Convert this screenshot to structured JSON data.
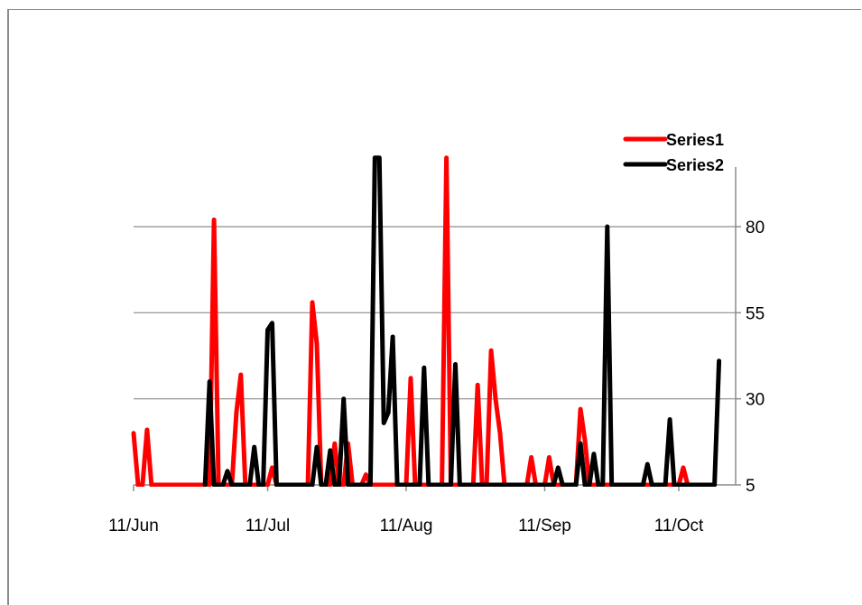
{
  "chart_data": {
    "type": "line",
    "title": "",
    "xlabel": "",
    "ylabel": "",
    "x_ticks": [
      "11/Jun",
      "11/Jul",
      "11/Aug",
      "11/Sep",
      "11/Oct"
    ],
    "y_ticks": [
      5,
      30,
      55,
      80
    ],
    "ylim": [
      5,
      100
    ],
    "y_axis_side": "right",
    "grid": "horizontal",
    "legend_position": "top-right",
    "series": [
      {
        "name": "Series1",
        "color": "#ff0000",
        "points": [
          [
            "2013-06-11",
            20
          ],
          [
            "2013-06-12",
            5
          ],
          [
            "2013-06-13",
            5
          ],
          [
            "2013-06-14",
            21
          ],
          [
            "2013-06-15",
            5
          ],
          [
            "2013-06-28",
            5
          ],
          [
            "2013-06-29",
            82
          ],
          [
            "2013-06-30",
            5
          ],
          [
            "2013-07-03",
            5
          ],
          [
            "2013-07-04",
            26
          ],
          [
            "2013-07-05",
            37
          ],
          [
            "2013-07-06",
            5
          ],
          [
            "2013-07-11",
            5
          ],
          [
            "2013-07-12",
            10
          ],
          [
            "2013-07-13",
            5
          ],
          [
            "2013-07-20",
            5
          ],
          [
            "2013-07-21",
            58
          ],
          [
            "2013-07-22",
            46
          ],
          [
            "2013-07-23",
            5
          ],
          [
            "2013-07-25",
            5
          ],
          [
            "2013-07-26",
            17
          ],
          [
            "2013-07-27",
            5
          ],
          [
            "2013-07-28",
            5
          ],
          [
            "2013-07-29",
            17
          ],
          [
            "2013-07-30",
            5
          ],
          [
            "2013-07-31",
            5
          ],
          [
            "2013-08-01",
            5
          ],
          [
            "2013-08-02",
            8
          ],
          [
            "2013-08-03",
            5
          ],
          [
            "2013-08-11",
            5
          ],
          [
            "2013-08-12",
            36
          ],
          [
            "2013-08-13",
            5
          ],
          [
            "2013-08-19",
            5
          ],
          [
            "2013-08-20",
            100
          ],
          [
            "2013-08-21",
            5
          ],
          [
            "2013-08-26",
            5
          ],
          [
            "2013-08-27",
            34
          ],
          [
            "2013-08-28",
            5
          ],
          [
            "2013-08-29",
            5
          ],
          [
            "2013-08-30",
            44
          ],
          [
            "2013-08-31",
            30
          ],
          [
            "2013-09-01",
            20
          ],
          [
            "2013-09-02",
            5
          ],
          [
            "2013-09-07",
            5
          ],
          [
            "2013-09-08",
            13
          ],
          [
            "2013-09-09",
            5
          ],
          [
            "2013-09-11",
            5
          ],
          [
            "2013-09-12",
            13
          ],
          [
            "2013-09-13",
            5
          ],
          [
            "2013-09-18",
            5
          ],
          [
            "2013-09-19",
            27
          ],
          [
            "2013-09-20",
            18
          ],
          [
            "2013-09-21",
            5
          ],
          [
            "2013-10-11",
            5
          ],
          [
            "2013-10-12",
            10
          ],
          [
            "2013-10-13",
            5
          ]
        ]
      },
      {
        "name": "Series2",
        "color": "#000000",
        "points": [
          [
            "2013-06-27",
            5
          ],
          [
            "2013-06-28",
            35
          ],
          [
            "2013-06-29",
            5
          ],
          [
            "2013-07-01",
            5
          ],
          [
            "2013-07-02",
            9
          ],
          [
            "2013-07-03",
            5
          ],
          [
            "2013-07-06",
            5
          ],
          [
            "2013-07-07",
            5
          ],
          [
            "2013-07-08",
            16
          ],
          [
            "2013-07-09",
            5
          ],
          [
            "2013-07-10",
            5
          ],
          [
            "2013-07-11",
            50
          ],
          [
            "2013-07-12",
            52
          ],
          [
            "2013-07-13",
            5
          ],
          [
            "2013-07-21",
            5
          ],
          [
            "2013-07-22",
            16
          ],
          [
            "2013-07-23",
            5
          ],
          [
            "2013-07-24",
            5
          ],
          [
            "2013-07-25",
            15
          ],
          [
            "2013-07-26",
            5
          ],
          [
            "2013-07-27",
            5
          ],
          [
            "2013-07-28",
            30
          ],
          [
            "2013-07-29",
            5
          ],
          [
            "2013-08-03",
            5
          ],
          [
            "2013-08-04",
            100
          ],
          [
            "2013-08-05",
            100
          ],
          [
            "2013-08-06",
            23
          ],
          [
            "2013-08-07",
            26
          ],
          [
            "2013-08-08",
            48
          ],
          [
            "2013-08-09",
            5
          ],
          [
            "2013-08-14",
            5
          ],
          [
            "2013-08-15",
            39
          ],
          [
            "2013-08-16",
            5
          ],
          [
            "2013-08-21",
            5
          ],
          [
            "2013-08-22",
            40
          ],
          [
            "2013-08-23",
            5
          ],
          [
            "2013-09-13",
            5
          ],
          [
            "2013-09-14",
            10
          ],
          [
            "2013-09-15",
            5
          ],
          [
            "2013-09-18",
            5
          ],
          [
            "2013-09-19",
            17
          ],
          [
            "2013-09-20",
            5
          ],
          [
            "2013-09-21",
            5
          ],
          [
            "2013-09-22",
            14
          ],
          [
            "2013-09-23",
            5
          ],
          [
            "2013-09-24",
            5
          ],
          [
            "2013-09-25",
            80
          ],
          [
            "2013-09-26",
            5
          ],
          [
            "2013-10-03",
            5
          ],
          [
            "2013-10-04",
            11
          ],
          [
            "2013-10-05",
            5
          ],
          [
            "2013-10-08",
            5
          ],
          [
            "2013-10-09",
            24
          ],
          [
            "2013-10-10",
            5
          ],
          [
            "2013-10-19",
            5
          ],
          [
            "2013-10-20",
            41
          ]
        ]
      }
    ]
  }
}
